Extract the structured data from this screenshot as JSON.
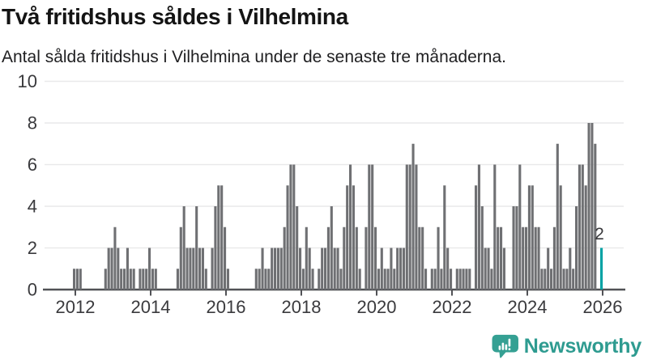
{
  "header": {
    "title": "Två fritidshus såldes i Vilhelmina",
    "subtitle": "Antal sålda fritidshus i Vilhelmina under de senaste tre månaderna."
  },
  "chart_data": {
    "type": "bar",
    "title": "Två fritidshus såldes i Vilhelmina",
    "subtitle": "Antal sålda fritidshus i Vilhelmina under de senaste tre månaderna.",
    "x_unit": "month",
    "x_start": "2011-12",
    "x_end": "2025-12",
    "series": [
      {
        "year": 2011,
        "start_month": 12,
        "values": [
          1
        ]
      },
      {
        "year": 2012,
        "values": [
          1,
          1,
          0,
          0,
          0,
          0,
          0,
          0,
          0,
          1,
          2,
          2
        ]
      },
      {
        "year": 2013,
        "values": [
          3,
          2,
          1,
          1,
          2,
          1,
          1,
          0,
          1,
          1,
          1,
          2
        ]
      },
      {
        "year": 2014,
        "values": [
          1,
          1,
          0,
          0,
          0,
          0,
          0,
          0,
          1,
          3,
          4,
          2
        ]
      },
      {
        "year": 2015,
        "values": [
          2,
          2,
          4,
          2,
          2,
          1,
          0,
          2,
          4,
          5,
          5,
          3
        ]
      },
      {
        "year": 2016,
        "values": [
          1,
          0,
          0,
          0,
          0,
          0,
          0,
          0,
          0,
          1,
          1,
          2
        ]
      },
      {
        "year": 2017,
        "values": [
          1,
          1,
          2,
          2,
          2,
          2,
          3,
          5,
          6,
          6,
          4,
          2
        ]
      },
      {
        "year": 2018,
        "values": [
          1,
          3,
          2,
          1,
          0,
          1,
          2,
          2,
          3,
          4,
          2,
          2
        ]
      },
      {
        "year": 2019,
        "values": [
          1,
          3,
          5,
          6,
          5,
          3,
          1,
          0,
          3,
          6,
          6,
          3
        ]
      },
      {
        "year": 2020,
        "values": [
          1,
          2,
          1,
          1,
          2,
          1,
          2,
          2,
          2,
          6,
          6,
          7
        ]
      },
      {
        "year": 2021,
        "values": [
          6,
          3,
          3,
          1,
          0,
          1,
          1,
          3,
          1,
          5,
          2,
          1
        ]
      },
      {
        "year": 2022,
        "values": [
          0,
          1,
          1,
          1,
          1,
          1,
          0,
          5,
          6,
          4,
          2,
          2
        ]
      },
      {
        "year": 2023,
        "values": [
          1,
          6,
          3,
          3,
          2,
          0,
          0,
          4,
          4,
          6,
          3,
          3
        ]
      },
      {
        "year": 2024,
        "values": [
          5,
          5,
          3,
          3,
          1,
          1,
          2,
          1,
          3,
          7,
          5,
          1
        ]
      },
      {
        "year": 2025,
        "values": [
          1,
          2,
          1,
          4,
          6,
          6,
          5,
          8,
          8,
          7,
          0,
          2
        ]
      }
    ],
    "highlight": {
      "category": "2025-12",
      "value": 2,
      "label": "2",
      "color": "#00a2a4"
    },
    "bar_color": "#6f7073",
    "ylim": [
      0,
      10
    ],
    "yticks": [
      0,
      2,
      4,
      6,
      8,
      10
    ],
    "xticks": [
      "2012",
      "2014",
      "2016",
      "2018",
      "2020",
      "2022",
      "2024",
      "2026"
    ],
    "grid": true,
    "legend": "none"
  },
  "colors": {
    "accent_teal": "#00a2a4",
    "bar_gray": "#6f7073",
    "axis": "#515256",
    "gridline": "#e9e9ea",
    "tick_label": "#3a3a3d",
    "brand_teal": "#2E9B90"
  },
  "footer": {
    "brand": "Newsworthy"
  }
}
